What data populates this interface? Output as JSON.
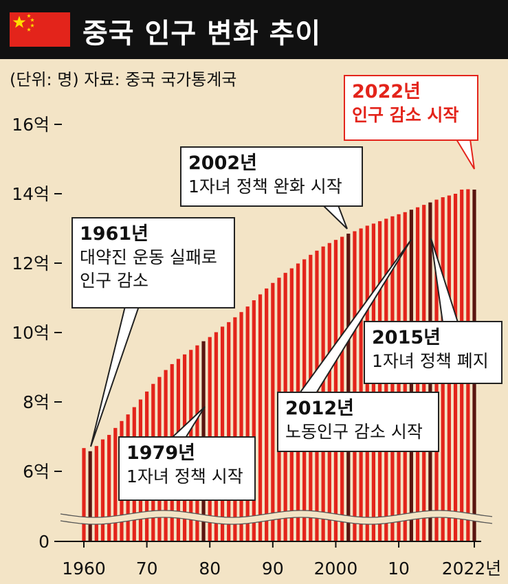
{
  "header": {
    "title": "중국 인구 변화 추이",
    "flag_icon": "china-flag-icon"
  },
  "subtitle": "(단위: 명)  자료: 중국 국가통계국",
  "colors": {
    "bar": "#e3241b",
    "highlight_bar": "#5a1510",
    "background": "#f3e4c6",
    "header": "#111111",
    "callout_red": "#e3241b"
  },
  "chart_data": {
    "type": "bar",
    "x_start": 1960,
    "x_end": 2022,
    "y_tick_labels": [
      "0",
      "6억",
      "8억",
      "10억",
      "12억",
      "14억",
      "16억"
    ],
    "x_tick_labels": [
      "1960",
      "70",
      "80",
      "90",
      "2000",
      "10",
      "2022년"
    ],
    "ylim_display": [
      6,
      16
    ],
    "axis_break": true,
    "unit": "억",
    "values": [
      6.67,
      6.58,
      6.73,
      6.92,
      7.05,
      7.25,
      7.45,
      7.64,
      7.85,
      8.07,
      8.3,
      8.52,
      8.72,
      8.92,
      9.09,
      9.24,
      9.37,
      9.5,
      9.63,
      9.75,
      9.87,
      10.01,
      10.17,
      10.3,
      10.44,
      10.59,
      10.75,
      10.93,
      11.1,
      11.27,
      11.43,
      11.58,
      11.72,
      11.85,
      11.99,
      12.11,
      12.24,
      12.36,
      12.48,
      12.58,
      12.67,
      12.76,
      12.85,
      12.92,
      13.0,
      13.08,
      13.14,
      13.21,
      13.28,
      13.35,
      13.41,
      13.47,
      13.54,
      13.61,
      13.68,
      13.75,
      13.83,
      13.9,
      13.95,
      14.0,
      14.12,
      14.13,
      14.12
    ],
    "highlight_years": [
      1961,
      1979,
      2002,
      2012,
      2015,
      2022
    ],
    "annotations": [
      {
        "year": "1961년",
        "text": "대약진 운동 실패로\n인구 감소"
      },
      {
        "year": "1979년",
        "text": "1자녀 정책 시작"
      },
      {
        "year": "2002년",
        "text": "1자녀 정책 완화 시작"
      },
      {
        "year": "2012년",
        "text": "노동인구 감소 시작"
      },
      {
        "year": "2015년",
        "text": "1자녀 정책 폐지"
      },
      {
        "year": "2022년",
        "text": "인구 감소 시작"
      }
    ]
  }
}
